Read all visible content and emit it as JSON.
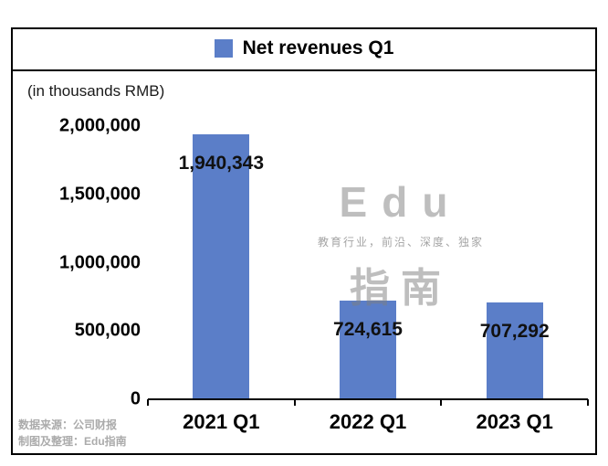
{
  "legend": {
    "label": "Net revenues Q1"
  },
  "unit_note": "(in thousands RMB)",
  "watermark": {
    "line1": "Edu",
    "line2": "教育行业，前沿、深度、独家",
    "line3": "指南"
  },
  "source": {
    "line1": "数据来源：公司财报",
    "line2": "制图及整理：Edu指南"
  },
  "colors": {
    "bar": "#5b7ec8",
    "frame_border": "#000000",
    "watermark_gray": "#7d7d7d"
  },
  "chart_data": {
    "type": "bar",
    "title": "Net revenues Q1",
    "ylabel": "(in thousands RMB)",
    "categories": [
      "2021 Q1",
      "2022 Q1",
      "2023 Q1"
    ],
    "values": [
      1940343,
      724615,
      707292
    ],
    "value_labels": [
      "1,940,343",
      "724,615",
      "707,292"
    ],
    "ylim": [
      0,
      2000000
    ],
    "yticks": [
      0,
      500000,
      1000000,
      1500000,
      2000000
    ],
    "ytick_labels": [
      "0",
      "500,000",
      "1,000,000",
      "1,500,000",
      "2,000,000"
    ],
    "legend_position": "top-center",
    "grid": false,
    "bar_color": "#5b7ec8"
  }
}
